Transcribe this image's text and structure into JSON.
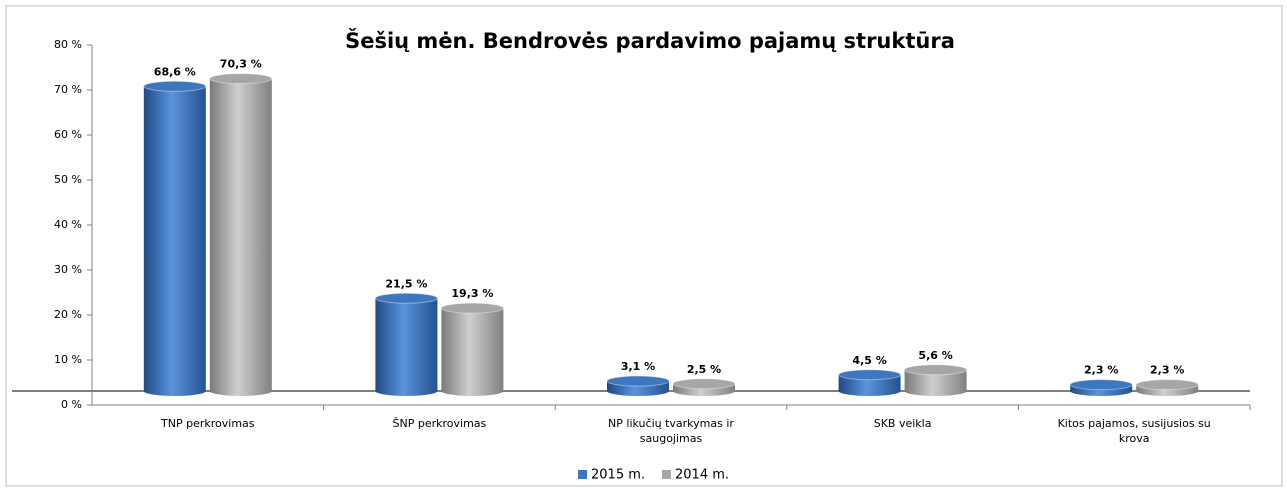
{
  "chart_data": {
    "type": "bar",
    "title": "Šešių mėn. Bendrovės pardavimo pajamų struktūra",
    "categories": [
      "TNP perkrovimas",
      "ŠNP perkrovimas",
      "NP likučių tvarkymas ir saugojimas",
      "SKB veikla",
      "Kitos pajamos, susijusios su krova"
    ],
    "series": [
      {
        "name": "2015 m.",
        "color": "#3f76c0",
        "values": [
          68.6,
          21.5,
          3.1,
          4.5,
          2.3
        ],
        "value_labels": [
          "68,6 %",
          "21,5 %",
          "3,1 %",
          "4,5 %",
          "2,3 %"
        ]
      },
      {
        "name": "2014 m.",
        "color": "#a6a6a6",
        "values": [
          70.3,
          19.3,
          2.5,
          5.6,
          2.3
        ],
        "value_labels": [
          "70,3 %",
          "19,3 %",
          "2,5 %",
          "5,6 %",
          "2,3 %"
        ]
      }
    ],
    "ylim": [
      0,
      80
    ],
    "yticks": [
      {
        "value": 0,
        "label": "0 %"
      },
      {
        "value": 10,
        "label": "10 %"
      },
      {
        "value": 20,
        "label": "20 %"
      },
      {
        "value": 30,
        "label": "30 %"
      },
      {
        "value": 40,
        "label": "40 %"
      },
      {
        "value": 50,
        "label": "50 %"
      },
      {
        "value": 60,
        "label": "60 %"
      },
      {
        "value": 70,
        "label": "70 %"
      },
      {
        "value": 80,
        "label": "80 %"
      }
    ],
    "legend": "bottom"
  }
}
